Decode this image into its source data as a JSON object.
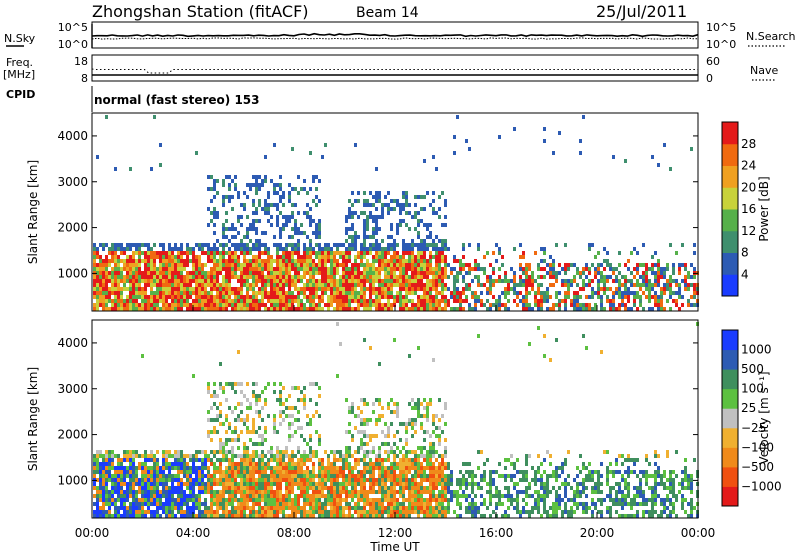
{
  "header": {
    "station": "Zhongshan Station (fitACF)",
    "beam": "Beam 14",
    "date": "25/Jul/2011"
  },
  "strip1": {
    "left_label": "N.Sky",
    "left_ticks": [
      "10^5",
      "10^0"
    ],
    "right_label": "N.Search",
    "right_ticks": [
      "10^5",
      "10^0"
    ]
  },
  "strip2": {
    "left_label_1": "Freq.",
    "left_label_2": "[MHz]",
    "left_ticks": [
      "18",
      "8"
    ],
    "right_label": "Nave",
    "right_ticks": [
      "60",
      "0"
    ]
  },
  "cpid": {
    "label": "CPID",
    "value": "normal (fast stereo) 153"
  },
  "colors": {
    "power": [
      "#1a3cff",
      "#2d5bb3",
      "#3f8f6e",
      "#56b04a",
      "#c8d23a",
      "#f0a020",
      "#f06a10",
      "#e41a1a"
    ],
    "velocity": [
      "#e41a1a",
      "#f05010",
      "#f08a1a",
      "#f0b030",
      "#c0c0c0",
      "#5cc040",
      "#3f8f5e",
      "#2d5bb3",
      "#1a3cff"
    ]
  },
  "chart_data": [
    {
      "type": "heatmap",
      "name": "power-panel",
      "xlabel": "Time UT",
      "ylabel": "Slant Range [km]",
      "xlim": [
        0,
        24
      ],
      "ylim": [
        180,
        4500
      ],
      "x_ticks": [
        "00:00",
        "04:00",
        "08:00",
        "12:00",
        "16:00",
        "20:00",
        "00:00"
      ],
      "y_ticks": [
        "1000",
        "2000",
        "3000",
        "4000"
      ],
      "colorbar": {
        "label": "Power [dB]",
        "ticks": [
          "4",
          "8",
          "12",
          "16",
          "20",
          "24",
          "28"
        ],
        "range": [
          0,
          30
        ]
      }
    },
    {
      "type": "heatmap",
      "name": "velocity-panel",
      "xlabel": "Time UT",
      "ylabel": "Slant Range [km]",
      "xlim": [
        0,
        24
      ],
      "ylim": [
        180,
        4500
      ],
      "x_ticks": [
        "00:00",
        "04:00",
        "08:00",
        "12:00",
        "16:00",
        "20:00",
        "00:00"
      ],
      "y_ticks": [
        "1000",
        "2000",
        "3000",
        "4000"
      ],
      "colorbar": {
        "label": "Velocity [m s⁻¹]",
        "ticks": [
          "1000",
          "500",
          "100",
          "25",
          "−25",
          "−100",
          "−500",
          "−1000"
        ]
      }
    }
  ]
}
